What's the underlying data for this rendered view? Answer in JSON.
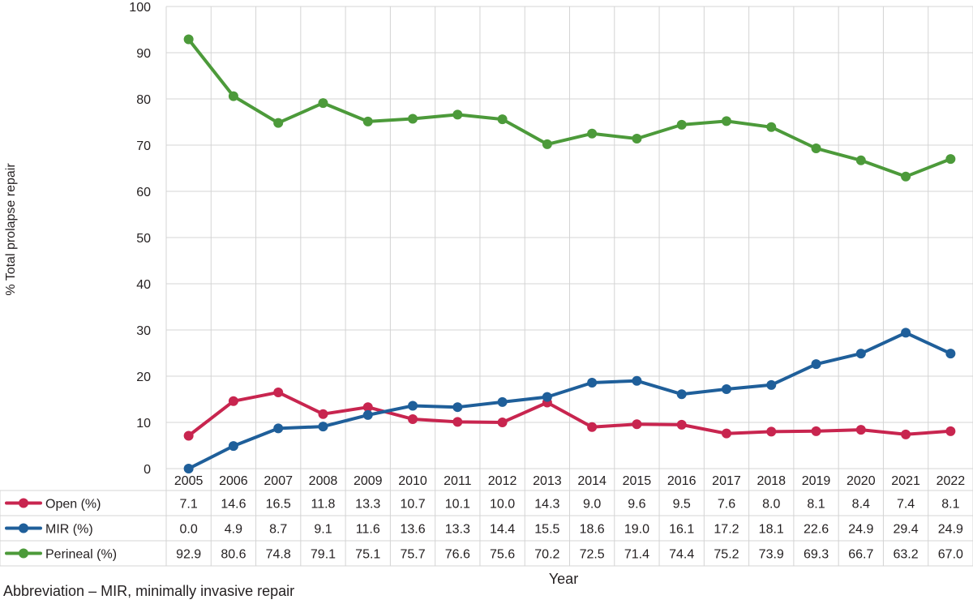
{
  "chart_data": {
    "type": "line",
    "ylabel": "% Total prolapse repair",
    "xlabel": "Year",
    "ylim": [
      0,
      100
    ],
    "yticks": [
      "0",
      "10",
      "20",
      "30",
      "40",
      "50",
      "60",
      "70",
      "80",
      "90",
      "100"
    ],
    "grid": true,
    "categories": [
      "2005",
      "2006",
      "2007",
      "2008",
      "2009",
      "2010",
      "2011",
      "2012",
      "2013",
      "2014",
      "2015",
      "2016",
      "2017",
      "2018",
      "2019",
      "2020",
      "2021",
      "2022"
    ],
    "series": [
      {
        "name": "Open (%)",
        "color": "#c8254f",
        "values": [
          7.1,
          14.6,
          16.5,
          11.8,
          13.3,
          10.7,
          10.1,
          10.0,
          14.3,
          9.0,
          9.6,
          9.5,
          7.6,
          8.0,
          8.1,
          8.4,
          7.4,
          8.1
        ],
        "labels": [
          "7.1",
          "14.6",
          "16.5",
          "11.8",
          "13.3",
          "10.7",
          "10.1",
          "10.0",
          "14.3",
          "9.0",
          "9.6",
          "9.5",
          "7.6",
          "8.0",
          "8.1",
          "8.4",
          "7.4",
          "8.1"
        ]
      },
      {
        "name": "MIR (%)",
        "color": "#1f5f9a",
        "values": [
          0.0,
          4.9,
          8.7,
          9.1,
          11.6,
          13.6,
          13.3,
          14.4,
          15.5,
          18.6,
          19.0,
          16.1,
          17.2,
          18.1,
          22.6,
          24.9,
          29.4,
          24.9
        ],
        "labels": [
          "0.0",
          "4.9",
          "8.7",
          "9.1",
          "11.6",
          "13.6",
          "13.3",
          "14.4",
          "15.5",
          "18.6",
          "19.0",
          "16.1",
          "17.2",
          "18.1",
          "22.6",
          "24.9",
          "29.4",
          "24.9"
        ]
      },
      {
        "name": "Perineal (%)",
        "color": "#4c9a3a",
        "values": [
          92.9,
          80.6,
          74.8,
          79.1,
          75.1,
          75.7,
          76.6,
          75.6,
          70.2,
          72.5,
          71.4,
          74.4,
          75.2,
          73.9,
          69.3,
          66.7,
          63.2,
          67.0
        ],
        "labels": [
          "92.9",
          "80.6",
          "74.8",
          "79.1",
          "75.1",
          "75.7",
          "76.6",
          "75.6",
          "70.2",
          "72.5",
          "71.4",
          "74.4",
          "75.2",
          "73.9",
          "69.3",
          "66.7",
          "63.2",
          "67.0"
        ]
      }
    ],
    "footnote": "Abbreviation – MIR, minimally invasive repair"
  }
}
